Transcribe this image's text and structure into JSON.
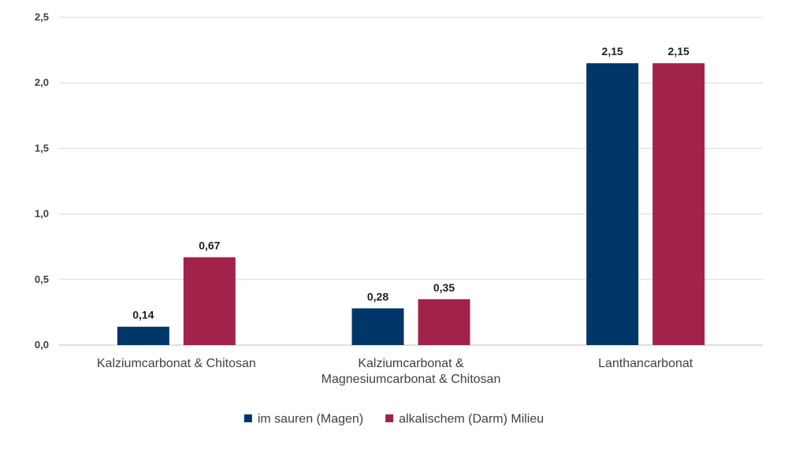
{
  "chart_data": {
    "type": "bar",
    "title": "",
    "xlabel": "",
    "ylabel": "",
    "ylim": [
      0,
      2.5
    ],
    "y_ticks": [
      0,
      0.5,
      1.0,
      1.5,
      2.0,
      2.5
    ],
    "y_tick_labels": [
      "0,0",
      "0,5",
      "1,0",
      "1,5",
      "2,0",
      "2,5"
    ],
    "grid": true,
    "legend_position": "bottom",
    "categories": [
      [
        "Kalziumcarbonat & Chitosan"
      ],
      [
        "Kalziumcarbonat &",
        "Magnesiumcarbonat & Chitosan"
      ],
      [
        "Lanthancarbonat"
      ]
    ],
    "series": [
      {
        "name": "im sauren (Magen)",
        "color": "#003668",
        "values": [
          0.14,
          0.28,
          2.15
        ],
        "labels": [
          "0,14",
          "0,28",
          "2,15"
        ]
      },
      {
        "name": "alkalischem (Darm) Milieu",
        "color": "#a2234a",
        "values": [
          0.67,
          0.35,
          2.15
        ],
        "labels": [
          "0,67",
          "0,35",
          "2,15"
        ]
      }
    ]
  }
}
